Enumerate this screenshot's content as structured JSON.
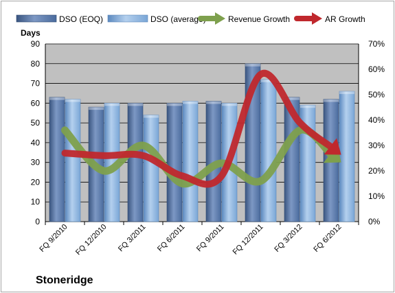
{
  "chart_data": {
    "type": "bar",
    "categories": [
      "FQ 9/2010",
      "FQ 12/2010",
      "FQ 3/2011",
      "FQ 6/2011",
      "FQ 9/2011",
      "FQ 12/2011",
      "FQ 3/2012",
      "FQ 6/2012"
    ],
    "series": [
      {
        "name": "DSO (EOQ)",
        "type": "bar",
        "axis": "left",
        "values": [
          63,
          58,
          60,
          60,
          61,
          80,
          63,
          62
        ]
      },
      {
        "name": "DSO (average)",
        "type": "bar",
        "axis": "left",
        "values": [
          62,
          60,
          54,
          61,
          60,
          72,
          59,
          66
        ]
      },
      {
        "name": "Revenue Growth",
        "type": "line",
        "axis": "right",
        "values": [
          36,
          20,
          30,
          15,
          23,
          16,
          36,
          24
        ]
      },
      {
        "name": "AR Growth",
        "type": "line",
        "axis": "right",
        "values": [
          27,
          26,
          26,
          18,
          18,
          58,
          39,
          27
        ]
      }
    ],
    "ylabel": "Days",
    "ylim": [
      0,
      90
    ],
    "yticks": [
      "0",
      "10",
      "20",
      "30",
      "40",
      "50",
      "60",
      "70",
      "80",
      "90"
    ],
    "y2lim": [
      0,
      70
    ],
    "y2ticks": [
      "0%",
      "10%",
      "20%",
      "30%",
      "40%",
      "50%",
      "60%",
      "70%"
    ],
    "grid": true,
    "legend_position": "top",
    "colors": {
      "dso_eoq": "#4a6b9d",
      "dso_avg": "#7aa6d6",
      "revenue_growth": "#7ea04d",
      "ar_growth": "#c0282d",
      "plot_background": "#c0c0c0"
    }
  },
  "company": "Stoneridge"
}
